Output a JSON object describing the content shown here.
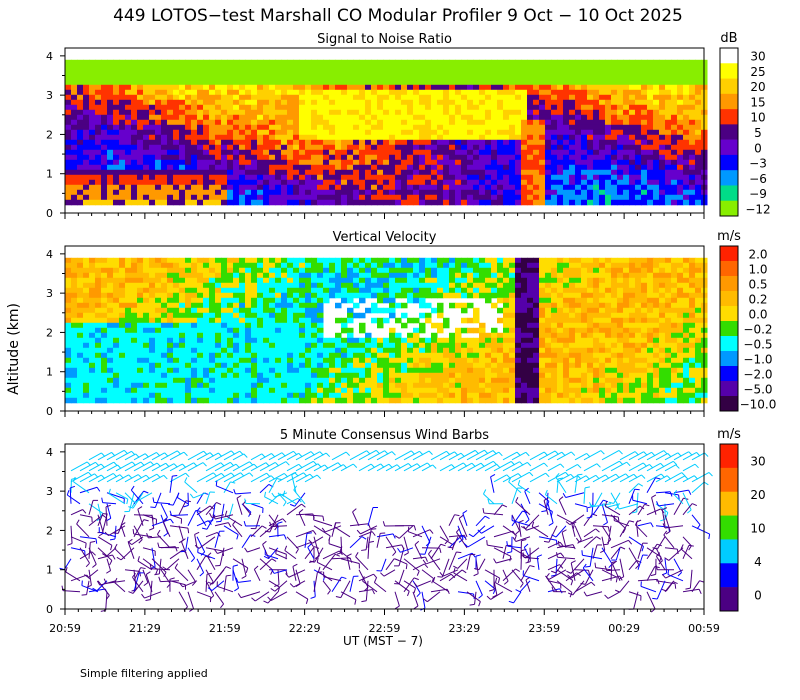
{
  "figure": {
    "title": "449 LOTOS−test Marshall CO Modular Profiler  9 Oct − 10 Oct 2025",
    "y_axis_label": "Altitude (km)",
    "x_axis_label": "UT  (MST − 7)",
    "footnote": "Simple filtering applied"
  },
  "chart_data": [
    {
      "type": "heatmap",
      "title": "Signal to Noise Ratio",
      "units": "dB",
      "x_ticks": [
        "20:59",
        "21:29",
        "21:59",
        "22:29",
        "22:59",
        "23:29",
        "23:59",
        "00:29",
        "00:59"
      ],
      "y_ticks": [
        "0",
        "1",
        "2",
        "3",
        "4"
      ],
      "ylim": [
        0,
        4.2
      ],
      "colorbar": {
        "labels": [
          "30",
          "25",
          "20",
          "15",
          "10",
          "5",
          "0",
          "−3",
          "−6",
          "−9",
          "−12"
        ],
        "colors": [
          "#ffffff",
          "#ffff00",
          "#ffd000",
          "#ff9900",
          "#ff3300",
          "#4b0082",
          "#6600cc",
          "#0000ff",
          "#0099ff",
          "#00dd88",
          "#88ee00"
        ]
      }
    },
    {
      "type": "heatmap",
      "title": "Vertical Velocity",
      "units": "m/s",
      "x_ticks": [
        "20:59",
        "21:29",
        "21:59",
        "22:29",
        "22:59",
        "23:29",
        "23:59",
        "00:29",
        "00:59"
      ],
      "y_ticks": [
        "0",
        "1",
        "2",
        "3",
        "4"
      ],
      "ylim": [
        0,
        4.2
      ],
      "colorbar": {
        "labels": [
          "2.0",
          "1.0",
          "0.5",
          "0.2",
          "0.0",
          "−0.2",
          "−0.5",
          "−1.0",
          "−2.0",
          "−5.0",
          "−10.0"
        ],
        "colors": [
          "#ff2200",
          "#ff6600",
          "#ff9900",
          "#ffbb00",
          "#ffdd00",
          "#33dd00",
          "#00ffff",
          "#0099ff",
          "#0000ff",
          "#5500aa",
          "#330044"
        ]
      }
    },
    {
      "type": "wind_barbs",
      "title": "5 Minute Consensus Wind Barbs",
      "units": "m/s",
      "x_ticks": [
        "20:59",
        "21:29",
        "21:59",
        "22:29",
        "22:59",
        "23:29",
        "23:59",
        "00:29",
        "00:59"
      ],
      "y_ticks": [
        "0",
        "1",
        "2",
        "3",
        "4"
      ],
      "ylim": [
        0,
        4.2
      ],
      "colorbar": {
        "labels": [
          "30",
          "20",
          "10",
          "4",
          "0"
        ],
        "colors": [
          "#ff2200",
          "#ff6600",
          "#ffbb00",
          "#33dd00",
          "#00ccff",
          "#0000ff",
          "#4b0082"
        ]
      }
    }
  ]
}
